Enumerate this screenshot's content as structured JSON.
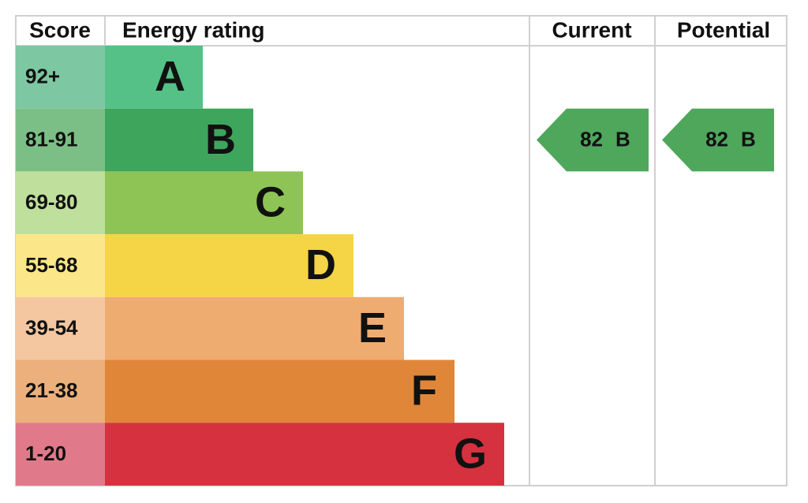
{
  "header": {
    "score": "Score",
    "energy_rating": "Energy rating",
    "current": "Current",
    "potential": "Potential"
  },
  "rows": [
    {
      "score": "92+",
      "band": "A"
    },
    {
      "score": "81-91",
      "band": "B"
    },
    {
      "score": "69-80",
      "band": "C"
    },
    {
      "score": "55-68",
      "band": "D"
    },
    {
      "score": "39-54",
      "band": "E"
    },
    {
      "score": "21-38",
      "band": "F"
    },
    {
      "score": "1-20",
      "band": "G"
    }
  ],
  "current": {
    "score": 82,
    "band": "B"
  },
  "potential": {
    "score": 82,
    "band": "B"
  }
}
